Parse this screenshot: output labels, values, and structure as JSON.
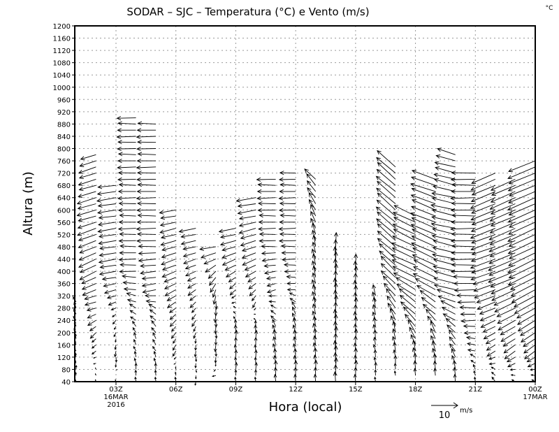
{
  "chart_data": {
    "type": "vector",
    "title": "SODAR – SJC – Temperatura (°C) e Vento (m/s)",
    "corner_label": "°C",
    "xlabel": "Hora (local)",
    "ylabel": "Altura (m)",
    "xlim_hours": [
      0.98,
      24
    ],
    "ylim": [
      40,
      1200
    ],
    "grid": true,
    "y_ticks": [
      40,
      80,
      120,
      160,
      200,
      240,
      280,
      320,
      360,
      400,
      440,
      480,
      520,
      560,
      600,
      640,
      680,
      720,
      760,
      800,
      840,
      880,
      920,
      960,
      1000,
      1040,
      1080,
      1120,
      1160,
      1200
    ],
    "x_ticks": [
      {
        "hour": 3,
        "label": "03Z",
        "sub1": "16MAR",
        "sub2": "2016"
      },
      {
        "hour": 6,
        "label": "06Z"
      },
      {
        "hour": 9,
        "label": "09Z"
      },
      {
        "hour": 12,
        "label": "12Z"
      },
      {
        "hour": 15,
        "label": "15Z"
      },
      {
        "hour": 18,
        "label": "18Z"
      },
      {
        "hour": 21,
        "label": "21Z"
      },
      {
        "hour": 24,
        "label": "00Z",
        "sub1": "17MAR"
      }
    ],
    "reference_vector": {
      "value": "10",
      "unit": "m/s",
      "speed": 10
    },
    "level_step_m": 20,
    "columns_note": "each column: hour, bottom/top height (m), wind profile keypoints [height_m, u_ms, v_ms]",
    "columns": [
      {
        "hour": 1,
        "bottom": 40,
        "top": 300,
        "profile": [
          [
            40,
            0,
            1
          ],
          [
            300,
            -1,
            2
          ]
        ]
      },
      {
        "hour": 2,
        "bottom": 40,
        "top": 780,
        "profile": [
          [
            40,
            0,
            1
          ],
          [
            200,
            -2,
            -2
          ],
          [
            300,
            -4,
            -1
          ],
          [
            400,
            -6,
            -3
          ],
          [
            600,
            -7,
            -2
          ],
          [
            780,
            -6,
            -2
          ]
        ]
      },
      {
        "hour": 3,
        "bottom": 40,
        "top": 680,
        "profile": [
          [
            40,
            0,
            1
          ],
          [
            120,
            0,
            -2
          ],
          [
            250,
            -1,
            -1
          ],
          [
            400,
            -6,
            -1
          ],
          [
            680,
            -7,
            -1
          ]
        ]
      },
      {
        "hour": 4,
        "bottom": 40,
        "top": 900,
        "profile": [
          [
            40,
            0,
            2
          ],
          [
            200,
            -1,
            2
          ],
          [
            300,
            -3,
            1
          ],
          [
            400,
            -6,
            0
          ],
          [
            900,
            -7,
            0
          ]
        ]
      },
      {
        "hour": 5,
        "bottom": 40,
        "top": 880,
        "profile": [
          [
            40,
            0,
            2
          ],
          [
            250,
            -2,
            2
          ],
          [
            350,
            -5,
            -1
          ],
          [
            500,
            -7,
            0
          ],
          [
            880,
            -7,
            0
          ]
        ]
      },
      {
        "hour": 6,
        "bottom": 40,
        "top": 600,
        "profile": [
          [
            40,
            0,
            2
          ],
          [
            150,
            -1,
            -2
          ],
          [
            250,
            -2,
            -2
          ],
          [
            400,
            -5,
            -2
          ],
          [
            600,
            -6,
            -1
          ]
        ]
      },
      {
        "hour": 7,
        "bottom": 40,
        "top": 540,
        "profile": [
          [
            40,
            0,
            -1
          ],
          [
            150,
            0,
            -2
          ],
          [
            300,
            -2,
            -2
          ],
          [
            540,
            -6,
            -1
          ]
        ]
      },
      {
        "hour": 8,
        "bottom": 60,
        "top": 480,
        "profile": [
          [
            60,
            -1,
            0
          ],
          [
            120,
            0,
            -2
          ],
          [
            300,
            0,
            -3
          ],
          [
            400,
            -3,
            -3
          ],
          [
            480,
            -6,
            -1
          ]
        ]
      },
      {
        "hour": 9,
        "bottom": 40,
        "top": 540,
        "profile": [
          [
            40,
            0,
            2
          ],
          [
            200,
            0,
            3
          ],
          [
            350,
            -2,
            -2
          ],
          [
            450,
            -5,
            -2
          ],
          [
            540,
            -6,
            -1
          ]
        ]
      },
      {
        "hour": 10,
        "bottom": 40,
        "top": 640,
        "profile": [
          [
            40,
            0,
            2
          ],
          [
            200,
            0,
            3
          ],
          [
            300,
            -1,
            -2
          ],
          [
            450,
            -5,
            -2
          ],
          [
            640,
            -7,
            -1
          ]
        ]
      },
      {
        "hour": 11,
        "bottom": 40,
        "top": 700,
        "profile": [
          [
            40,
            0,
            3
          ],
          [
            200,
            -1,
            3
          ],
          [
            350,
            -3,
            -1
          ],
          [
            500,
            -6,
            0
          ],
          [
            700,
            -7,
            0
          ]
        ]
      },
      {
        "hour": 12,
        "bottom": 40,
        "top": 720,
        "profile": [
          [
            40,
            0,
            3
          ],
          [
            250,
            -1,
            3
          ],
          [
            350,
            -3,
            0
          ],
          [
            500,
            -6,
            0
          ],
          [
            720,
            -6,
            0
          ]
        ]
      },
      {
        "hour": 13,
        "bottom": 40,
        "top": 700,
        "profile": [
          [
            40,
            0,
            3
          ],
          [
            300,
            -1,
            4
          ],
          [
            500,
            -1,
            4
          ],
          [
            650,
            -3,
            4
          ],
          [
            700,
            -4,
            4
          ]
        ]
      },
      {
        "hour": 14,
        "bottom": 40,
        "top": 480,
        "profile": [
          [
            40,
            0,
            4
          ],
          [
            480,
            0,
            5
          ]
        ]
      },
      {
        "hour": 15,
        "bottom": 40,
        "top": 420,
        "profile": [
          [
            40,
            0,
            3
          ],
          [
            420,
            0,
            4
          ]
        ]
      },
      {
        "hour": 16,
        "bottom": 40,
        "top": 320,
        "profile": [
          [
            40,
            0,
            2
          ],
          [
            320,
            -1,
            4
          ]
        ]
      },
      {
        "hour": 17,
        "bottom": 60,
        "top": 740,
        "profile": [
          [
            60,
            0,
            2
          ],
          [
            200,
            -1,
            4
          ],
          [
            350,
            -5,
            5
          ],
          [
            500,
            -7,
            6
          ],
          [
            740,
            -7,
            6
          ]
        ]
      },
      {
        "hour": 18,
        "bottom": 60,
        "top": 580,
        "profile": [
          [
            60,
            0,
            3
          ],
          [
            150,
            -1,
            4
          ],
          [
            250,
            -5,
            5
          ],
          [
            400,
            -9,
            4
          ],
          [
            580,
            -8,
            4
          ]
        ]
      },
      {
        "hour": 19,
        "bottom": 60,
        "top": 700,
        "profile": [
          [
            60,
            0,
            3
          ],
          [
            200,
            -2,
            4
          ],
          [
            350,
            -8,
            4
          ],
          [
            500,
            -9,
            4
          ],
          [
            700,
            -9,
            3
          ]
        ]
      },
      {
        "hour": 20,
        "bottom": 40,
        "top": 780,
        "profile": [
          [
            40,
            0,
            3
          ],
          [
            200,
            -3,
            3
          ],
          [
            350,
            -8,
            2
          ],
          [
            600,
            -9,
            2
          ],
          [
            780,
            -7,
            2
          ]
        ]
      },
      {
        "hour": 21,
        "bottom": 40,
        "top": 720,
        "profile": [
          [
            40,
            0,
            2
          ],
          [
            200,
            -4,
            0
          ],
          [
            400,
            -9,
            0
          ],
          [
            720,
            -9,
            0
          ]
        ]
      },
      {
        "hour": 22,
        "bottom": 40,
        "top": 720,
        "profile": [
          [
            40,
            -1,
            2
          ],
          [
            150,
            -3,
            -2
          ],
          [
            400,
            -9,
            -3
          ],
          [
            720,
            -9,
            -4
          ]
        ]
      },
      {
        "hour": 23,
        "bottom": 40,
        "top": 700,
        "profile": [
          [
            40,
            -1,
            1
          ],
          [
            150,
            -4,
            -3
          ],
          [
            400,
            -10,
            -4
          ],
          [
            700,
            -9,
            -4
          ]
        ]
      },
      {
        "hour": 24,
        "bottom": 40,
        "top": 760,
        "profile": [
          [
            40,
            -1,
            1
          ],
          [
            150,
            -4,
            -3
          ],
          [
            400,
            -10,
            -5
          ],
          [
            760,
            -10,
            -4
          ]
        ]
      }
    ]
  }
}
